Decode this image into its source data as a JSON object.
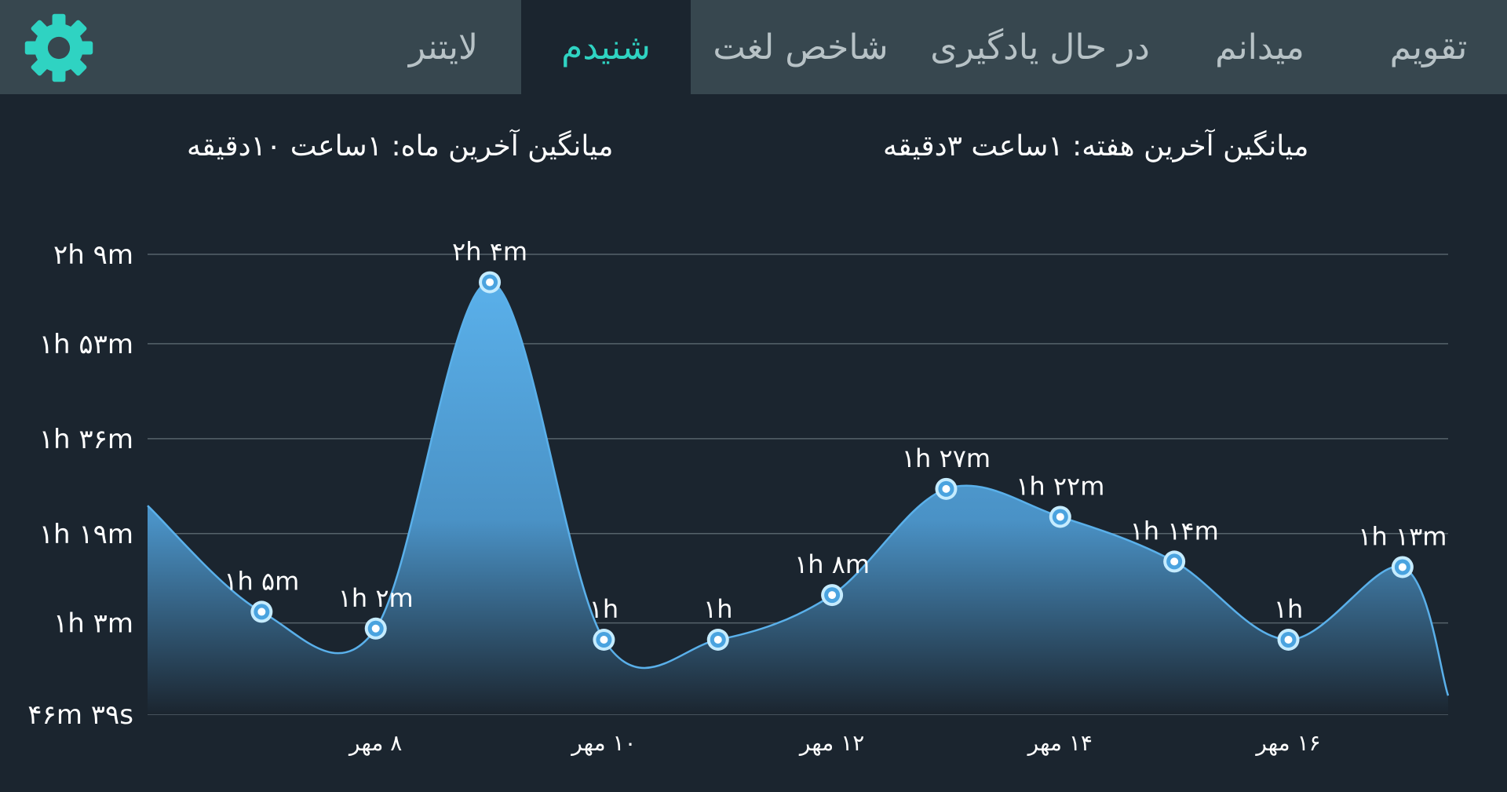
{
  "tabs": [
    {
      "label": "تقویم",
      "active": false
    },
    {
      "label": "میدانم",
      "active": false
    },
    {
      "label": "در حال یادگیری",
      "active": false
    },
    {
      "label": "شاخص لغت",
      "active": false
    },
    {
      "label": "شنیدم",
      "active": true
    },
    {
      "label": "لایتنر",
      "active": false
    }
  ],
  "settings_icon": "gear-icon",
  "accent_color": "#2fd3c2",
  "summary": {
    "week_avg": "میانگین آخرین هفته: ۱ساعت  ۳دقیقه",
    "month_avg": "میانگین آخرین ماه: ۱ساعت  ۱۰دقیقه"
  },
  "chart_data": {
    "type": "area",
    "y_unit": "minutes",
    "ylim": [
      46.65,
      129
    ],
    "y_ticks": [
      {
        "value": 46.65,
        "label": "۴۶m ۳۹s"
      },
      {
        "value": 63,
        "label": "۱h ۳m"
      },
      {
        "value": 79,
        "label": "۱h ۱۹m"
      },
      {
        "value": 96,
        "label": "۱h ۳۶m"
      },
      {
        "value": 113,
        "label": "۱h ۵۳m"
      },
      {
        "value": 129,
        "label": "۲h ۹m"
      }
    ],
    "x_ticks": [
      {
        "day": 8,
        "label": "۸ مهر"
      },
      {
        "day": 10,
        "label": "۱۰ مهر"
      },
      {
        "day": 12,
        "label": "۱۲ مهر"
      },
      {
        "day": 14,
        "label": "۱۴ مهر"
      },
      {
        "day": 16,
        "label": "۱۶ مهر"
      }
    ],
    "points": [
      {
        "day": 7,
        "value": 65,
        "label": "۱h ۵m"
      },
      {
        "day": 8,
        "value": 62,
        "label": "۱h ۲m"
      },
      {
        "day": 9,
        "value": 124,
        "label": "۲h ۴m"
      },
      {
        "day": 10,
        "value": 60,
        "label": "۱h"
      },
      {
        "day": 11,
        "value": 60,
        "label": "۱h"
      },
      {
        "day": 12,
        "value": 68,
        "label": "۱h ۸m"
      },
      {
        "day": 13,
        "value": 87,
        "label": "۱h ۲۷m"
      },
      {
        "day": 14,
        "value": 82,
        "label": "۱h ۲۲m"
      },
      {
        "day": 15,
        "value": 74,
        "label": "۱h ۱۴m"
      },
      {
        "day": 16,
        "value": 60,
        "label": "۱h"
      },
      {
        "day": 17,
        "value": 73,
        "label": "۱h ۱۳m"
      }
    ],
    "edge_left_value": 84,
    "edge_right_value": 50,
    "line_color": "#5ab0ea",
    "fill_top_color": "#5ab0ea",
    "fill_bottom_color": "#1b252f",
    "grid": true
  }
}
